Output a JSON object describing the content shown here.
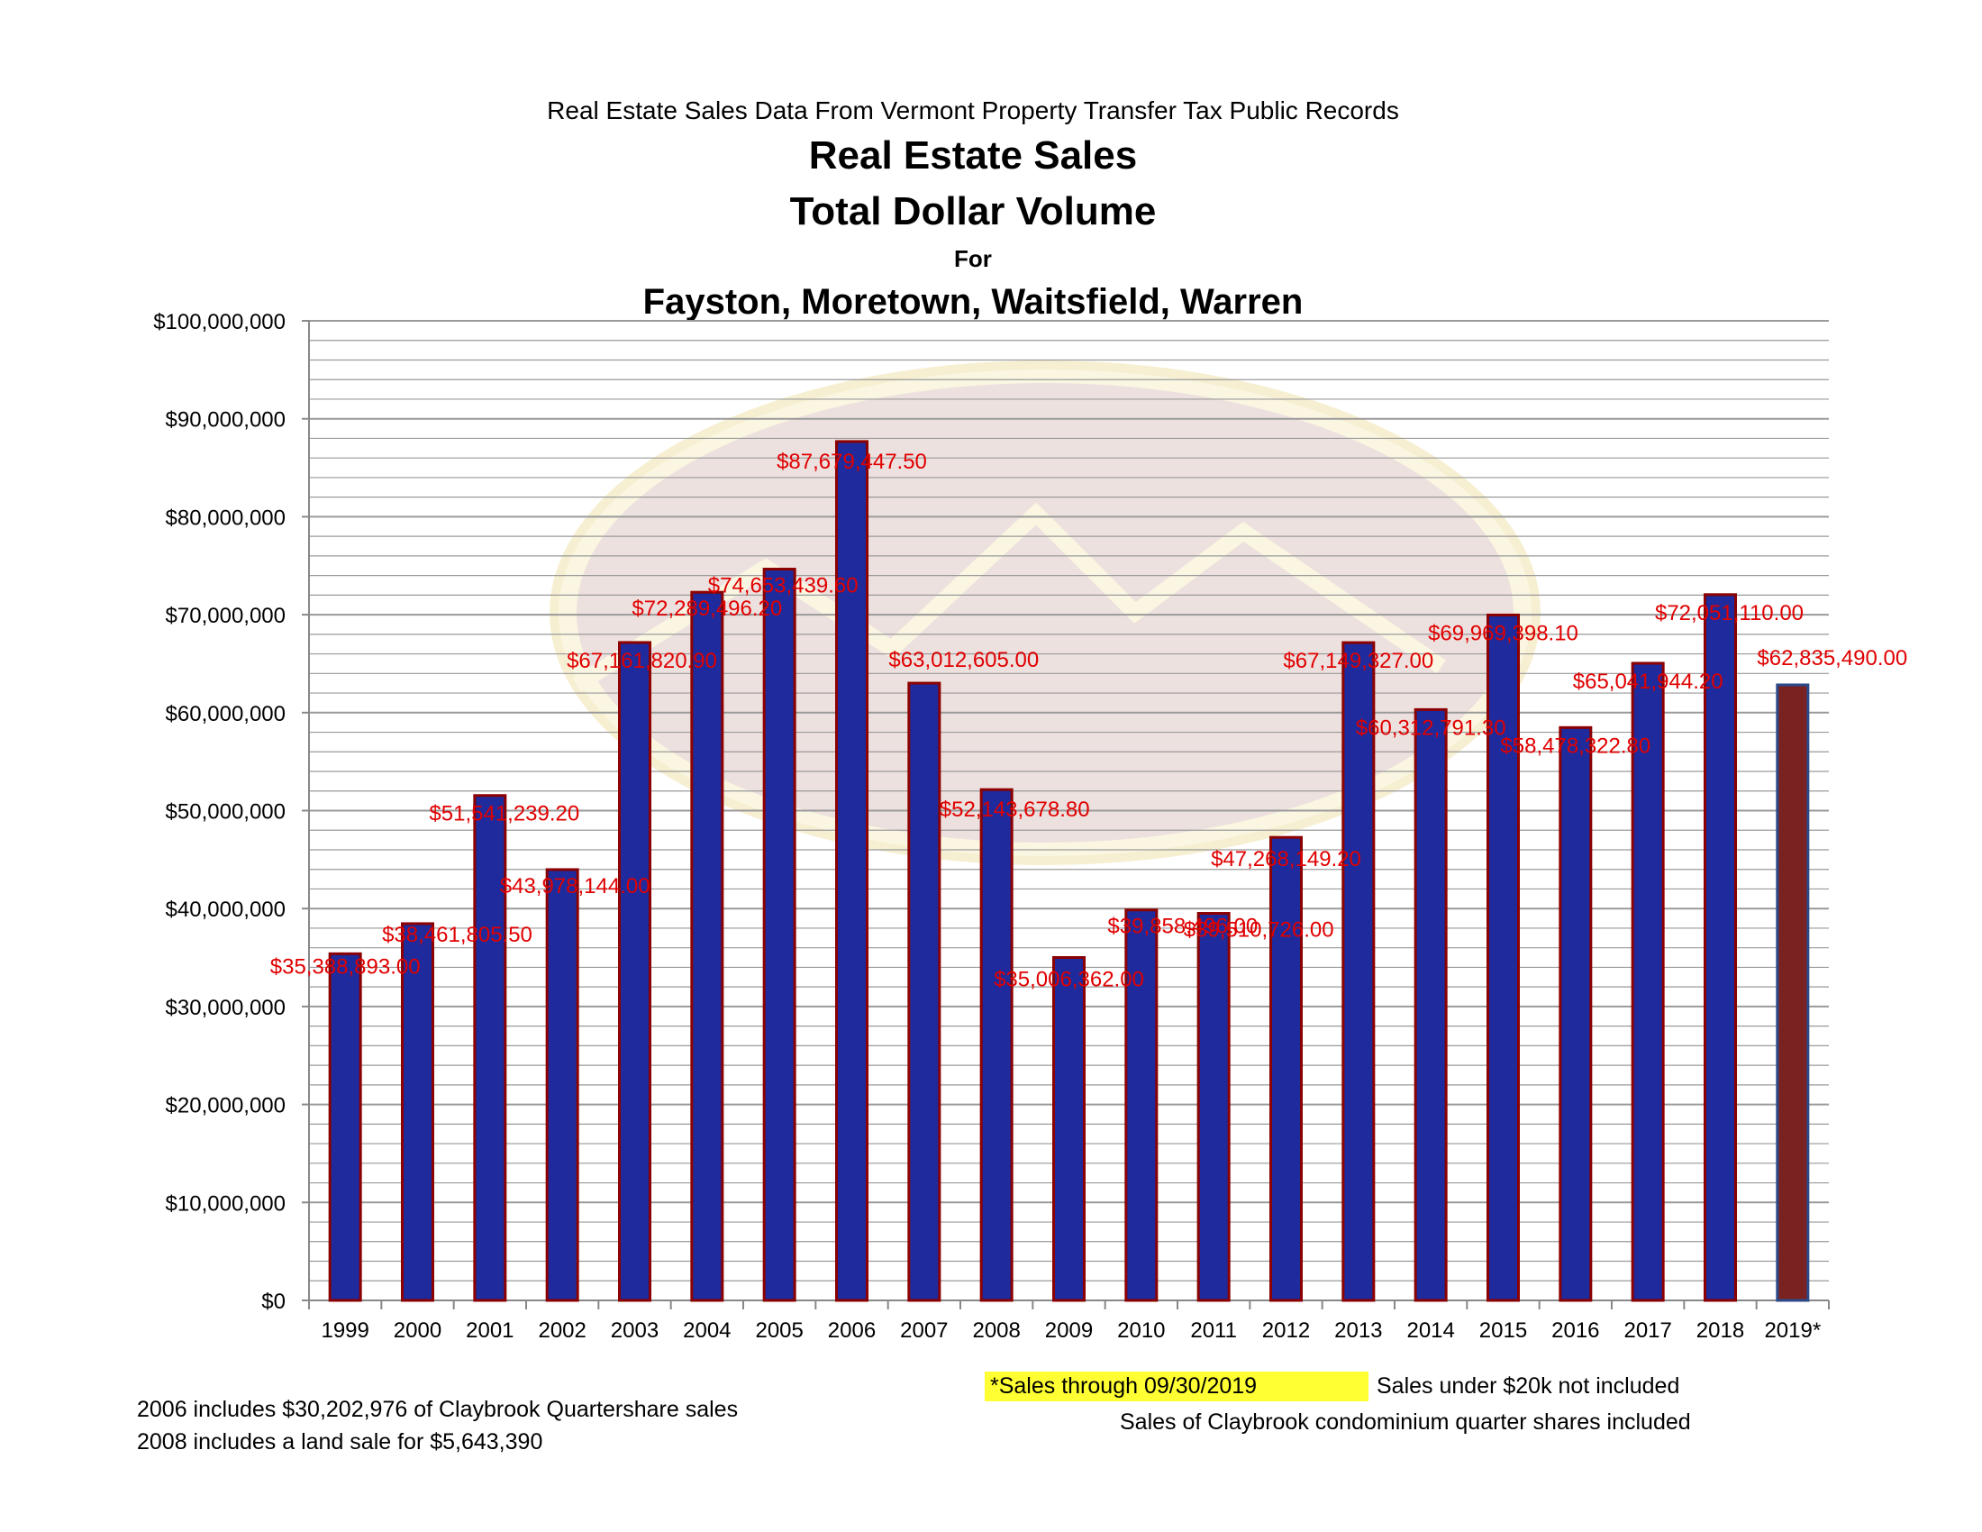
{
  "header": {
    "subtitle": "Real Estate Sales Data From Vermont Property Transfer Tax Public Records",
    "title_line1": "Real Estate Sales",
    "title_line2": "Total Dollar Volume",
    "title_line3": "For",
    "title_line4": "Fayston, Moretown, Waitsfield, Warren"
  },
  "notes": {
    "note_2006": "2006 includes $30,202,976 of Claybrook Quartershare sales",
    "note_2008": "2008 includes a land sale for $5,643,390",
    "sales_through": "*Sales through 09/30/2019",
    "under_20k": "Sales under $20k not included",
    "claybrook": "Sales of Claybrook condominium quarter shares included"
  },
  "colors": {
    "bar_fill": "#1f2a9c",
    "bar_outline": "#8b0000",
    "highlight_bar_fill": "#7a2222",
    "highlight_bar_outline": "#2b4a8a",
    "data_label": "#e00000",
    "grid": "#9a9a9a",
    "axis": "#888888",
    "note_highlight": "#ffff33"
  },
  "chart_data": {
    "type": "bar",
    "categories": [
      "1999",
      "2000",
      "2001",
      "2002",
      "2003",
      "2004",
      "2005",
      "2006",
      "2007",
      "2008",
      "2009",
      "2010",
      "2011",
      "2012",
      "2013",
      "2014",
      "2015",
      "2016",
      "2017",
      "2018",
      "2019*"
    ],
    "values": [
      35388893.0,
      38461805.5,
      51541239.2,
      43978144.0,
      67161820.9,
      72289496.2,
      74653439.6,
      87679447.5,
      63012605.0,
      52143678.8,
      35006362.0,
      39858496.0,
      39510726.0,
      47268149.2,
      67149327.0,
      60312791.3,
      69969398.1,
      58478322.8,
      65041944.2,
      72051110.0,
      62835490.0
    ],
    "data_labels": [
      "$35,388,893.00",
      "$38,461,805.50",
      "$51,541,239.20",
      "$43,978,144.00",
      "$67,161,820.90",
      "$72,289,496.20",
      "$74,653,439.60",
      "$87,679,447.50",
      "$63,012,605.00",
      "$52,143,678.80",
      "$35,006,362.00",
      "$39,858,496.00",
      "$39,510,726.00",
      "$47,268,149.20",
      "$67,149,327.00",
      "$60,312,791.30",
      "$69,969,398.10",
      "$58,478,322.80",
      "$65,041,944.20",
      "$72,051,110.00",
      "$62,835,490.00"
    ],
    "highlight_category": "2019*",
    "ylim": [
      0,
      100000000
    ],
    "y_ticks": [
      0,
      10000000,
      20000000,
      30000000,
      40000000,
      50000000,
      60000000,
      70000000,
      80000000,
      90000000,
      100000000
    ],
    "y_tick_labels": [
      "$0",
      "$10,000,000",
      "$20,000,000",
      "$30,000,000",
      "$40,000,000",
      "$50,000,000",
      "$60,000,000",
      "$70,000,000",
      "$80,000,000",
      "$90,000,000",
      "$100,000,000"
    ],
    "minor_grid_step": 2000000,
    "grid": true,
    "legend": "none",
    "xlabel": "",
    "ylabel": ""
  }
}
